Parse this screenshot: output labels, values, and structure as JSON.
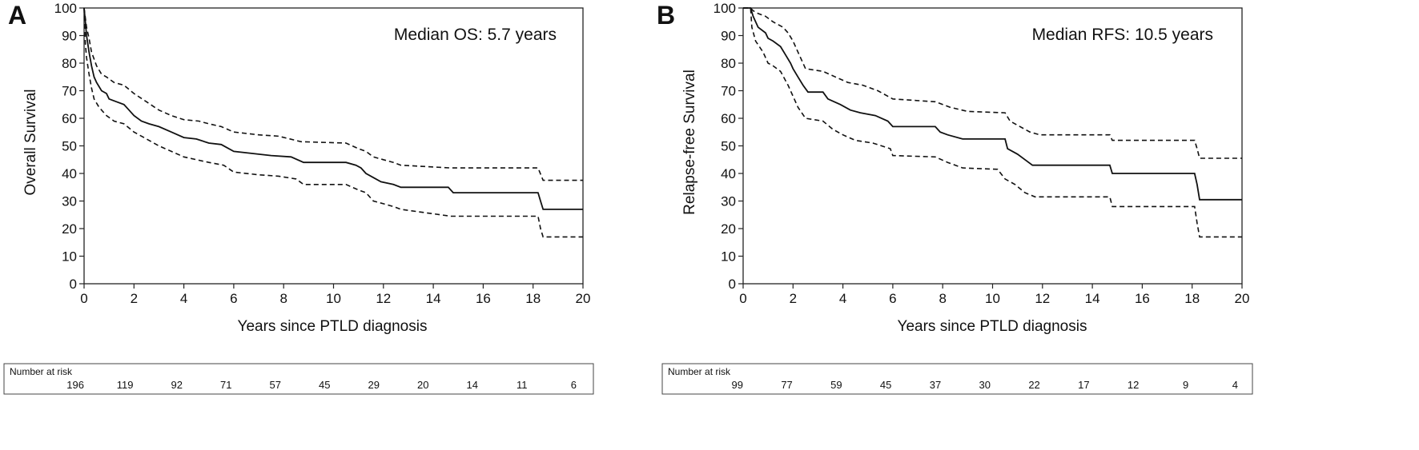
{
  "chart_data": [
    {
      "type": "line",
      "panel_label": "A",
      "ylabel": "Overall Survival",
      "xlabel": "Years since PTLD diagnosis",
      "xlim": [
        0,
        20
      ],
      "ylim": [
        0,
        100
      ],
      "xticks": [
        0,
        2,
        4,
        6,
        8,
        10,
        12,
        14,
        16,
        18,
        20
      ],
      "yticks": [
        0,
        10,
        20,
        30,
        40,
        50,
        60,
        70,
        80,
        90,
        100
      ],
      "annotation": "Median OS: 5.7 years",
      "series": [
        {
          "name": "Overall survival estimate",
          "style": "solid",
          "points": [
            [
              0,
              100
            ],
            [
              0.05,
              95
            ],
            [
              0.1,
              90
            ],
            [
              0.2,
              84
            ],
            [
              0.3,
              79
            ],
            [
              0.4,
              75
            ],
            [
              0.5,
              73
            ],
            [
              0.7,
              70
            ],
            [
              0.9,
              69
            ],
            [
              1.0,
              67
            ],
            [
              1.3,
              66
            ],
            [
              1.6,
              65
            ],
            [
              1.8,
              63
            ],
            [
              2.0,
              61
            ],
            [
              2.3,
              59
            ],
            [
              2.6,
              58
            ],
            [
              3.0,
              57
            ],
            [
              3.5,
              55
            ],
            [
              4.0,
              53
            ],
            [
              4.5,
              52.5
            ],
            [
              5.0,
              51
            ],
            [
              5.5,
              50.5
            ],
            [
              6.0,
              48
            ],
            [
              7.0,
              47
            ],
            [
              7.5,
              46.5
            ],
            [
              8.3,
              46
            ],
            [
              8.8,
              44
            ],
            [
              10.5,
              44
            ],
            [
              10.9,
              43
            ],
            [
              11.1,
              42
            ],
            [
              11.3,
              40
            ],
            [
              11.6,
              38.5
            ],
            [
              11.9,
              37
            ],
            [
              12.4,
              36
            ],
            [
              12.7,
              35
            ],
            [
              14.6,
              35
            ],
            [
              14.8,
              33
            ],
            [
              18.2,
              33
            ],
            [
              18.3,
              30
            ],
            [
              18.4,
              27
            ],
            [
              20,
              27
            ]
          ]
        },
        {
          "name": "Upper 95% CI",
          "style": "dashed",
          "points": [
            [
              0,
              100
            ],
            [
              0.1,
              93
            ],
            [
              0.2,
              89
            ],
            [
              0.3,
              84
            ],
            [
              0.5,
              79
            ],
            [
              0.7,
              76
            ],
            [
              0.9,
              75
            ],
            [
              1.2,
              73
            ],
            [
              1.6,
              72
            ],
            [
              2.0,
              69
            ],
            [
              2.5,
              66
            ],
            [
              3.0,
              63
            ],
            [
              3.5,
              61
            ],
            [
              4.0,
              59.5
            ],
            [
              4.6,
              59
            ],
            [
              5.0,
              58
            ],
            [
              5.5,
              57
            ],
            [
              6.0,
              55
            ],
            [
              7.0,
              54
            ],
            [
              7.8,
              53.5
            ],
            [
              8.7,
              51.5
            ],
            [
              10.5,
              51
            ],
            [
              11.0,
              49
            ],
            [
              11.3,
              48
            ],
            [
              11.6,
              46
            ],
            [
              12.0,
              45
            ],
            [
              12.4,
              44
            ],
            [
              12.7,
              43
            ],
            [
              14.7,
              42
            ],
            [
              18.2,
              42
            ],
            [
              18.4,
              37.5
            ],
            [
              20,
              37.5
            ]
          ]
        },
        {
          "name": "Lower 95% CI",
          "style": "dashed",
          "points": [
            [
              0,
              100
            ],
            [
              0.05,
              87
            ],
            [
              0.1,
              82
            ],
            [
              0.2,
              76
            ],
            [
              0.3,
              71
            ],
            [
              0.4,
              67
            ],
            [
              0.6,
              64
            ],
            [
              0.9,
              61
            ],
            [
              1.2,
              59
            ],
            [
              1.6,
              58
            ],
            [
              2.0,
              55
            ],
            [
              2.4,
              53
            ],
            [
              3.0,
              50
            ],
            [
              3.5,
              48
            ],
            [
              4.0,
              46
            ],
            [
              4.5,
              45
            ],
            [
              5.0,
              44
            ],
            [
              5.6,
              43
            ],
            [
              6.0,
              40.5
            ],
            [
              7.0,
              39.5
            ],
            [
              7.8,
              39
            ],
            [
              8.5,
              38
            ],
            [
              8.8,
              36
            ],
            [
              10.5,
              36
            ],
            [
              11.0,
              34
            ],
            [
              11.3,
              33
            ],
            [
              11.6,
              30
            ],
            [
              12.0,
              29
            ],
            [
              12.4,
              28
            ],
            [
              12.7,
              27
            ],
            [
              14.7,
              24.5
            ],
            [
              18.2,
              24.5
            ],
            [
              18.3,
              20
            ],
            [
              18.4,
              17
            ],
            [
              20,
              17
            ]
          ]
        }
      ],
      "risk_table": {
        "title": "Number at risk",
        "values": [
          196,
          119,
          92,
          71,
          57,
          45,
          29,
          20,
          14,
          11,
          6
        ]
      }
    },
    {
      "type": "line",
      "panel_label": "B",
      "ylabel": "Relapse-free Survival",
      "xlabel": "Years since PTLD diagnosis",
      "xlim": [
        0,
        20
      ],
      "ylim": [
        0,
        100
      ],
      "xticks": [
        0,
        2,
        4,
        6,
        8,
        10,
        12,
        14,
        16,
        18,
        20
      ],
      "yticks": [
        0,
        10,
        20,
        30,
        40,
        50,
        60,
        70,
        80,
        90,
        100
      ],
      "annotation": "Median RFS: 10.5 years",
      "series": [
        {
          "name": "Relapse-free survival estimate",
          "style": "solid",
          "points": [
            [
              0,
              100
            ],
            [
              0.3,
              100
            ],
            [
              0.4,
              97
            ],
            [
              0.6,
              93
            ],
            [
              0.9,
              91
            ],
            [
              1.0,
              89
            ],
            [
              1.2,
              88
            ],
            [
              1.5,
              86
            ],
            [
              1.7,
              83
            ],
            [
              1.9,
              80
            ],
            [
              2.0,
              78
            ],
            [
              2.2,
              75
            ],
            [
              2.4,
              72
            ],
            [
              2.6,
              69.5
            ],
            [
              3.2,
              69.5
            ],
            [
              3.4,
              67
            ],
            [
              3.9,
              65
            ],
            [
              4.3,
              63
            ],
            [
              4.7,
              62
            ],
            [
              5.3,
              61
            ],
            [
              5.8,
              59
            ],
            [
              6.0,
              57
            ],
            [
              7.7,
              57
            ],
            [
              7.9,
              55
            ],
            [
              8.2,
              54
            ],
            [
              8.8,
              52.5
            ],
            [
              10.5,
              52.5
            ],
            [
              10.6,
              49
            ],
            [
              11.0,
              47
            ],
            [
              11.3,
              45
            ],
            [
              11.6,
              43
            ],
            [
              14.7,
              43
            ],
            [
              14.8,
              40
            ],
            [
              18.1,
              40
            ],
            [
              18.2,
              36
            ],
            [
              18.3,
              30.5
            ],
            [
              20,
              30.5
            ]
          ]
        },
        {
          "name": "Upper 95% CI",
          "style": "dashed",
          "points": [
            [
              0,
              100
            ],
            [
              0.3,
              100
            ],
            [
              0.4,
              99
            ],
            [
              0.6,
              98
            ],
            [
              0.9,
              97
            ],
            [
              1.2,
              95
            ],
            [
              1.6,
              93
            ],
            [
              1.8,
              91
            ],
            [
              2.0,
              88
            ],
            [
              2.2,
              84
            ],
            [
              2.5,
              78
            ],
            [
              3.2,
              77
            ],
            [
              3.7,
              75
            ],
            [
              4.2,
              73
            ],
            [
              4.8,
              72
            ],
            [
              5.4,
              70
            ],
            [
              6.0,
              67
            ],
            [
              7.7,
              66
            ],
            [
              8.3,
              64
            ],
            [
              9.0,
              62.5
            ],
            [
              10.5,
              62
            ],
            [
              10.7,
              59
            ],
            [
              11.1,
              57
            ],
            [
              11.5,
              55
            ],
            [
              11.9,
              54
            ],
            [
              14.7,
              54
            ],
            [
              14.8,
              52
            ],
            [
              18.1,
              52
            ],
            [
              18.2,
              49
            ],
            [
              18.3,
              45.5
            ],
            [
              20,
              45.5
            ]
          ]
        },
        {
          "name": "Lower 95% CI",
          "style": "dashed",
          "points": [
            [
              0,
              100
            ],
            [
              0.3,
              100
            ],
            [
              0.35,
              93
            ],
            [
              0.5,
              88
            ],
            [
              0.8,
              84
            ],
            [
              1.0,
              80
            ],
            [
              1.2,
              79
            ],
            [
              1.5,
              77
            ],
            [
              1.8,
              72
            ],
            [
              2.0,
              68
            ],
            [
              2.2,
              64
            ],
            [
              2.5,
              60
            ],
            [
              3.2,
              59
            ],
            [
              3.6,
              56
            ],
            [
              4.0,
              54
            ],
            [
              4.5,
              52
            ],
            [
              5.2,
              51
            ],
            [
              5.9,
              49
            ],
            [
              6.0,
              46.5
            ],
            [
              7.7,
              46
            ],
            [
              8.2,
              44
            ],
            [
              8.8,
              42
            ],
            [
              10.2,
              41.5
            ],
            [
              10.5,
              38
            ],
            [
              10.9,
              36
            ],
            [
              11.3,
              33
            ],
            [
              11.7,
              31.5
            ],
            [
              14.7,
              31.5
            ],
            [
              14.8,
              28
            ],
            [
              18.1,
              28
            ],
            [
              18.2,
              22
            ],
            [
              18.3,
              17
            ],
            [
              20,
              17
            ]
          ]
        }
      ],
      "risk_table": {
        "title": "Number at risk",
        "values": [
          99,
          77,
          59,
          45,
          37,
          30,
          22,
          17,
          12,
          9,
          4
        ]
      }
    }
  ]
}
